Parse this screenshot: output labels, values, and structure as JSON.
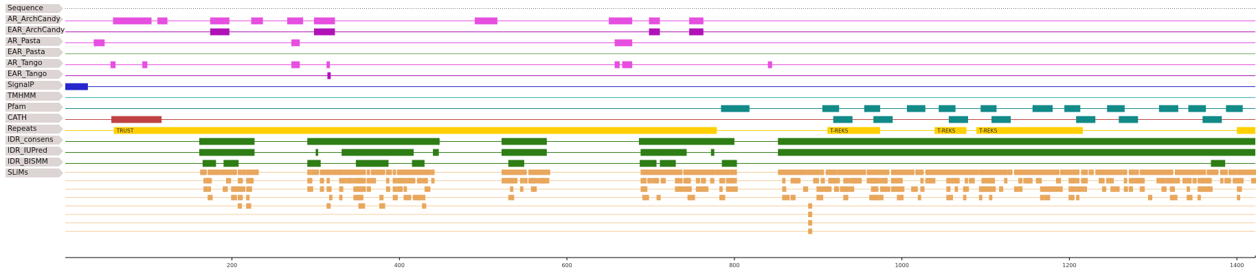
{
  "tracks": [
    {
      "label": "Sequence"
    },
    {
      "label": "AR_ArchCandy"
    },
    {
      "label": "EAR_ArchCandy"
    },
    {
      "label": "AR_Pasta"
    },
    {
      "label": "EAR_Pasta"
    },
    {
      "label": "AR_Tango"
    },
    {
      "label": "EAR_Tango"
    },
    {
      "label": "SignalP"
    },
    {
      "label": "TMHMM"
    },
    {
      "label": "Pfam"
    },
    {
      "label": "CATH"
    },
    {
      "label": "Repeats"
    },
    {
      "label": "IDR_consens"
    },
    {
      "label": "IDR_IUPred"
    },
    {
      "label": "IDR_BISMM"
    },
    {
      "label": "SLiMs"
    }
  ],
  "colors": {
    "label_bg": "#ddd5d3",
    "sequence_dots": "#666666",
    "archcandy": "#e64fe0",
    "ear_archcandy": "#b012b8",
    "pasta": "#e64fe0",
    "ear_pasta_line": "#77a96a",
    "tango": "#e64fe0",
    "ear_tango": "#b012b8",
    "signalp": "#2626cc",
    "tmhmm_line": "#3ab0ac",
    "pfam": "#118a88",
    "cath": "#bf4343",
    "repeats": "#ffd000",
    "idr": "#2e7d15",
    "slims": "#e8a75d",
    "slims_line": "#f3cc99"
  },
  "chart_data": {
    "type": "feature-track",
    "xlim": [
      1,
      1422
    ],
    "x_ticks": [
      200,
      400,
      600,
      800,
      1000,
      1200,
      1400
    ],
    "x_tick_labels": [
      "200",
      "400",
      "600",
      "800",
      "1000",
      "1200",
      "1400"
    ],
    "features": {
      "AR_ArchCandy": [
        [
          58,
          104
        ],
        [
          111,
          123
        ],
        [
          174,
          197
        ],
        [
          223,
          237
        ],
        [
          266,
          285
        ],
        [
          298,
          323
        ],
        [
          490,
          517
        ],
        [
          650,
          678
        ],
        [
          698,
          711
        ],
        [
          746,
          763
        ]
      ],
      "EAR_ArchCandy": [
        [
          174,
          197
        ],
        [
          298,
          323
        ],
        [
          698,
          711
        ],
        [
          746,
          763
        ]
      ],
      "AR_Pasta": [
        [
          35,
          48
        ],
        [
          271,
          281
        ],
        [
          657,
          678
        ]
      ],
      "EAR_Pasta": [],
      "AR_Tango": [
        [
          55,
          61
        ],
        [
          93,
          99
        ],
        [
          271,
          281
        ],
        [
          313,
          317
        ],
        [
          657,
          663
        ],
        [
          666,
          678
        ],
        [
          840,
          845
        ]
      ],
      "EAR_Tango": [
        [
          314,
          318
        ]
      ],
      "SignalP": [
        [
          1,
          28
        ]
      ],
      "TMHMM": [],
      "Pfam_row1": [
        [
          784,
          818
        ],
        [
          905,
          925
        ],
        [
          955,
          974
        ],
        [
          1006,
          1028
        ],
        [
          1044,
          1064
        ],
        [
          1094,
          1113
        ],
        [
          1156,
          1180
        ],
        [
          1194,
          1213
        ],
        [
          1245,
          1266
        ],
        [
          1307,
          1330
        ],
        [
          1342,
          1363
        ],
        [
          1387,
          1407
        ]
      ],
      "Pfam_row2": [
        [
          918,
          941
        ],
        [
          966,
          989
        ],
        [
          1056,
          1079
        ],
        [
          1107,
          1130
        ],
        [
          1208,
          1231
        ],
        [
          1259,
          1282
        ],
        [
          1359,
          1382
        ]
      ],
      "CATH": [
        [
          56,
          116
        ]
      ],
      "Repeats": [
        {
          "start": 59,
          "end": 779,
          "label": "TRUST"
        },
        {
          "start": 911,
          "end": 974,
          "label": "T-REKS"
        },
        {
          "start": 1039,
          "end": 1077,
          "label": "T-REKS"
        },
        {
          "start": 1089,
          "end": 1216,
          "label": "T-REKS"
        },
        {
          "start": 1400,
          "end": 1422,
          "label": ""
        }
      ],
      "IDR_consens": [
        [
          161,
          227
        ],
        [
          290,
          448
        ],
        [
          522,
          576
        ],
        [
          686,
          800
        ],
        [
          852,
          1422
        ]
      ],
      "IDR_IUPred": [
        [
          161,
          227
        ],
        [
          300,
          303
        ],
        [
          331,
          417
        ],
        [
          440,
          447
        ],
        [
          522,
          576
        ],
        [
          688,
          743
        ],
        [
          772,
          776
        ],
        [
          852,
          1422
        ]
      ],
      "IDR_BISMM": [
        [
          165,
          181
        ],
        [
          190,
          208
        ],
        [
          290,
          306
        ],
        [
          348,
          387
        ],
        [
          415,
          430
        ],
        [
          530,
          549
        ],
        [
          687,
          707
        ],
        [
          711,
          730
        ],
        [
          785,
          803
        ],
        [
          1369,
          1386
        ]
      ]
    }
  }
}
